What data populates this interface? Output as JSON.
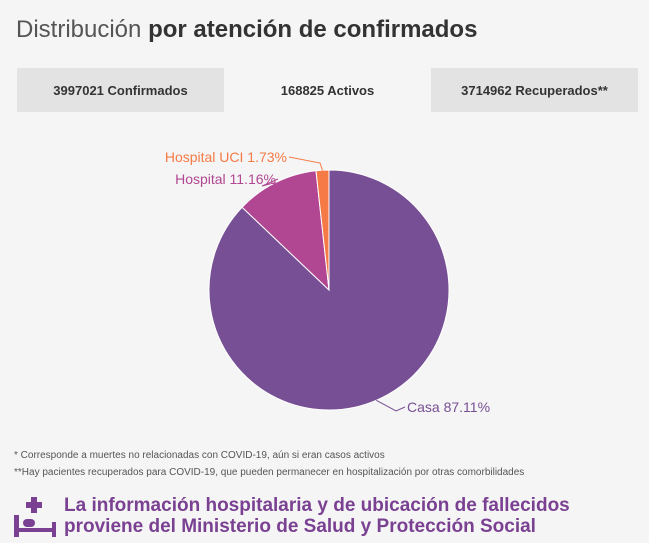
{
  "header": {
    "title_prefix": "Distribución",
    "title_bold": "por atención de confirmados"
  },
  "tabs": [
    {
      "label": "3997021 Confirmados",
      "active": false
    },
    {
      "label": "168825 Activos",
      "active": true
    },
    {
      "label": "3714962 Recuperados**",
      "active": false
    }
  ],
  "chart_data": {
    "type": "pie",
    "slices": [
      {
        "label": "Casa 87.11%",
        "value": 87.11,
        "color": "#774f94"
      },
      {
        "label": "Hospital 11.16%",
        "value": 11.16,
        "color": "#b14792"
      },
      {
        "label": "Hospital UCI 1.73%",
        "value": 1.73,
        "color": "#f57a45"
      }
    ]
  },
  "notes": {
    "note1": "* Corresponde a muertes no relacionadas con COVID-19, aún si eran casos activos",
    "note2": "**Hay pacientes recuperados para COVID-19, que pueden permanecer en hospitalización por otras comorbilidades"
  },
  "footer": {
    "line1": "La información hospitalaria y de ubicación de fallecidos",
    "line2": "proviene del Ministerio de Salud y Protección Social",
    "icon": "hospital-bed-icon",
    "accent_color": "#7a4192"
  }
}
